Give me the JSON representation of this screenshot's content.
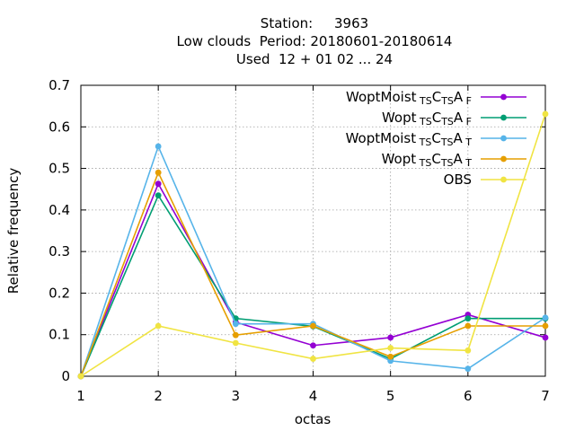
{
  "chart_data": {
    "type": "line",
    "title_lines": [
      "Station:     3963",
      "Low clouds  Period: 20180601-20180614",
      "Used  12 + 01 02 ... 24"
    ],
    "xlabel": "octas",
    "ylabel": "Relative frequency",
    "xlim": [
      1,
      7
    ],
    "ylim": [
      0,
      0.7
    ],
    "x": [
      1,
      2,
      3,
      4,
      5,
      6,
      7
    ],
    "xticks": [
      "1",
      "2",
      "3",
      "4",
      "5",
      "6",
      "7"
    ],
    "yticks": [
      "0",
      "0.1",
      "0.2",
      "0.3",
      "0.4",
      "0.5",
      "0.6",
      "0.7"
    ],
    "grid": true,
    "legend_position": "top-right",
    "series": [
      {
        "name": "WoptMoist",
        "sub1": "TS",
        "mid1": "C",
        "sub2": "TS",
        "mid2": "A",
        "sub3": "F",
        "color": "#9400d3",
        "values": [
          0.0,
          0.463,
          0.13,
          0.074,
          0.093,
          0.148,
          0.093
        ]
      },
      {
        "name": "Wopt",
        "sub1": "TS",
        "mid1": "C",
        "sub2": "TS",
        "mid2": "A",
        "sub3": "F",
        "color": "#009e73",
        "values": [
          0.0,
          0.435,
          0.139,
          0.12,
          0.042,
          0.139,
          0.139
        ]
      },
      {
        "name": "WoptMoist",
        "sub1": "TS",
        "mid1": "C",
        "sub2": "TS",
        "mid2": "A",
        "sub3": "T",
        "color": "#56b4e9",
        "values": [
          0.0,
          0.553,
          0.126,
          0.126,
          0.037,
          0.018,
          0.141
        ]
      },
      {
        "name": "Wopt",
        "sub1": "TS",
        "mid1": "C",
        "sub2": "TS",
        "mid2": "A",
        "sub3": "T",
        "color": "#e69f00",
        "values": [
          0.0,
          0.49,
          0.099,
          0.121,
          0.047,
          0.121,
          0.121
        ]
      },
      {
        "name": "OBS",
        "color": "#f0e442",
        "values": [
          0.0,
          0.121,
          0.08,
          0.042,
          0.068,
          0.062,
          0.631
        ]
      }
    ]
  }
}
